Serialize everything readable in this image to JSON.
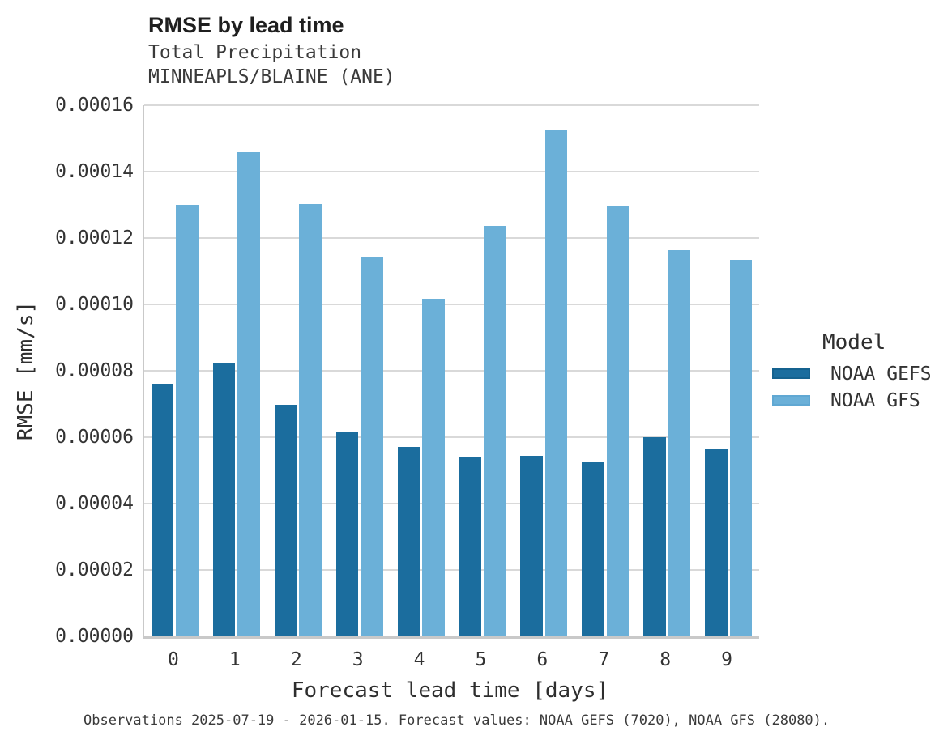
{
  "header": {
    "title": "RMSE by lead time",
    "subtitle1": "Total Precipitation",
    "subtitle2": "MINNEAPLS/BLAINE (ANE)"
  },
  "chart_data": {
    "type": "bar",
    "title": "RMSE by lead time",
    "subtitle": [
      "Total Precipitation",
      "MINNEAPLS/BLAINE (ANE)"
    ],
    "categories": [
      "0",
      "1",
      "2",
      "3",
      "4",
      "5",
      "6",
      "7",
      "8",
      "9"
    ],
    "series": [
      {
        "name": "NOAA GEFS",
        "color": "#1b6d9e",
        "border_color": "#15628f",
        "values": [
          7.62e-05,
          8.25e-05,
          6.98e-05,
          6.18e-05,
          5.71e-05,
          5.42e-05,
          5.44e-05,
          5.25e-05,
          6e-05,
          5.64e-05
        ]
      },
      {
        "name": "NOAA GFS",
        "color": "#6bb0d8",
        "border_color": "#60a8d3",
        "values": [
          0.00013,
          0.0001459,
          0.0001303,
          0.0001144,
          0.0001017,
          0.0001237,
          0.0001524,
          0.0001296,
          0.0001164,
          0.0001134
        ]
      }
    ],
    "xlabel": "Forecast lead time [days]",
    "ylabel": "RMSE [mm/s]",
    "ylim": [
      0,
      0.00016
    ],
    "ytick_step": 2e-05,
    "ytick_labels": [
      "0.00000",
      "0.00002",
      "0.00004",
      "0.00006",
      "0.00008",
      "0.00010",
      "0.00012",
      "0.00014",
      "0.00016"
    ],
    "legend_title": "Model",
    "legend_position": "right",
    "grid": true,
    "gridline_color": "#d9d9d9",
    "axis_color": "#c9c9c9"
  },
  "footer": {
    "text": "Observations 2025-07-19 - 2026-01-15. Forecast values: NOAA GEFS (7020), NOAA GFS (28080)."
  }
}
